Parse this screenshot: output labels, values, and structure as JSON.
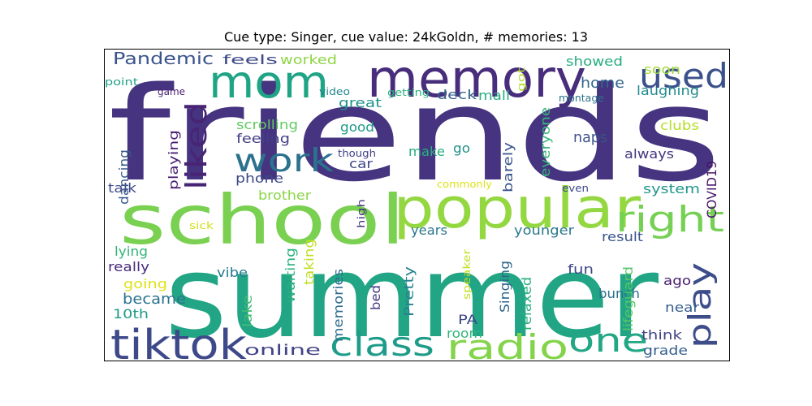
{
  "chart_data": {
    "type": "wordcloud",
    "title": "Cue type: Singer, cue value: 24kGoldn, # memories: 13",
    "background": "#ffffff",
    "words": [
      {
        "text": "friends",
        "color": "#463480"
      },
      {
        "text": "summer",
        "color": "#21a585"
      },
      {
        "text": "school",
        "color": "#7ad151"
      },
      {
        "text": "popular",
        "color": "#93d741"
      },
      {
        "text": "memory",
        "color": "#472d7b"
      },
      {
        "text": "mom",
        "color": "#20a486"
      },
      {
        "text": "used",
        "color": "#3b518b"
      },
      {
        "text": "tiktok",
        "color": "#3e4989"
      },
      {
        "text": "class",
        "color": "#1e9c89"
      },
      {
        "text": "radio",
        "color": "#84d44b"
      },
      {
        "text": "one",
        "color": "#22a785"
      },
      {
        "text": "play",
        "color": "#3d4d8a"
      },
      {
        "text": "right",
        "color": "#75d054"
      },
      {
        "text": "work",
        "color": "#2c728e"
      },
      {
        "text": "liked",
        "color": "#482475"
      },
      {
        "text": "Pandemic",
        "color": "#3a538b"
      },
      {
        "text": "feels",
        "color": "#3e4a89"
      },
      {
        "text": "worked",
        "color": "#8ed645"
      },
      {
        "text": "showed",
        "color": "#26ad81"
      },
      {
        "text": "soon",
        "color": "#a2da37"
      },
      {
        "text": "home",
        "color": "#31668e"
      },
      {
        "text": "laughing",
        "color": "#238a8d"
      },
      {
        "text": "deck",
        "color": "#35608d"
      },
      {
        "text": "mall",
        "color": "#27ad81"
      },
      {
        "text": "great",
        "color": "#20928c"
      },
      {
        "text": "getting",
        "color": "#2ab07f"
      },
      {
        "text": "got",
        "color": "#b8de29"
      },
      {
        "text": "montage",
        "color": "#2c718e"
      },
      {
        "text": "video",
        "color": "#24878e"
      },
      {
        "text": "game",
        "color": "#481d6f"
      },
      {
        "text": "point",
        "color": "#1fa088"
      },
      {
        "text": "scrolling",
        "color": "#62cb5f"
      },
      {
        "text": "good",
        "color": "#1f998a"
      },
      {
        "text": "feeling",
        "color": "#424086"
      },
      {
        "text": "everyone",
        "color": "#35b779"
      },
      {
        "text": "clubs",
        "color": "#b5de2b"
      },
      {
        "text": "naps",
        "color": "#3b528b"
      },
      {
        "text": "always",
        "color": "#453781"
      },
      {
        "text": "make",
        "color": "#29af7f"
      },
      {
        "text": "go",
        "color": "#21918c"
      },
      {
        "text": "car",
        "color": "#3f4788"
      },
      {
        "text": "though",
        "color": "#424086"
      },
      {
        "text": "phone",
        "color": "#3e4a89"
      },
      {
        "text": "dancing",
        "color": "#38598c"
      },
      {
        "text": "playing",
        "color": "#481f70"
      },
      {
        "text": "barely",
        "color": "#3a548c"
      },
      {
        "text": "COVID19",
        "color": "#481467"
      },
      {
        "text": "talk",
        "color": "#3e4c8a"
      },
      {
        "text": "brother",
        "color": "#8bd646"
      },
      {
        "text": "commonly",
        "color": "#dde318"
      },
      {
        "text": "even",
        "color": "#3e4989"
      },
      {
        "text": "system",
        "color": "#1f958b"
      },
      {
        "text": "high",
        "color": "#46327e"
      },
      {
        "text": "sick",
        "color": "#d0e11c"
      },
      {
        "text": "lying",
        "color": "#32b67a"
      },
      {
        "text": "years",
        "color": "#2a768e"
      },
      {
        "text": "younger",
        "color": "#2a788e"
      },
      {
        "text": "result",
        "color": "#3a548c"
      },
      {
        "text": "really",
        "color": "#482979"
      },
      {
        "text": "vibe",
        "color": "#287d8e"
      },
      {
        "text": "taking",
        "color": "#c0df25"
      },
      {
        "text": "waiting",
        "color": "#2ab07f"
      },
      {
        "text": "speaker",
        "color": "#c5e021"
      },
      {
        "text": "Singing",
        "color": "#31688e"
      },
      {
        "text": "fun",
        "color": "#3f4788"
      },
      {
        "text": "going",
        "color": "#dde318"
      },
      {
        "text": "became",
        "color": "#2b748e"
      },
      {
        "text": "10th",
        "color": "#1e9b8a"
      },
      {
        "text": "lake",
        "color": "#40bd72"
      },
      {
        "text": "memories",
        "color": "#2f6c8e"
      },
      {
        "text": "bed",
        "color": "#443b84"
      },
      {
        "text": "Pretty",
        "color": "#26828e"
      },
      {
        "text": "PA",
        "color": "#3f4889"
      },
      {
        "text": "room",
        "color": "#31b57b"
      },
      {
        "text": "relaxed",
        "color": "#2ab07f"
      },
      {
        "text": "bunch",
        "color": "#2c718e"
      },
      {
        "text": "ago",
        "color": "#481c6e"
      },
      {
        "text": "lifeguard",
        "color": "#56c667"
      },
      {
        "text": "near",
        "color": "#355f8d"
      },
      {
        "text": "think",
        "color": "#414487"
      },
      {
        "text": "grade",
        "color": "#34618d"
      },
      {
        "text": "online",
        "color": "#414487"
      }
    ]
  }
}
